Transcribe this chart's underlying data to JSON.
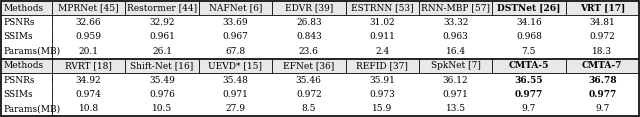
{
  "header1": [
    "Methods",
    "MPRNet [45]",
    "Restormer [44]",
    "NAFNet [6]",
    "EDVR [39]",
    "ESTRNN [53]",
    "RNN-MBP [57]",
    "DSTNet [26]",
    "VRT [17]"
  ],
  "row1_1": [
    "PSNRs",
    "32.66",
    "32.92",
    "33.69",
    "26.83",
    "31.02",
    "33.32",
    "34.16",
    "34.81"
  ],
  "row1_2": [
    "SSIMs",
    "0.959",
    "0.961",
    "0.967",
    "0.843",
    "0.911",
    "0.963",
    "0.968",
    "0.972"
  ],
  "row1_3": [
    "Params(MB)",
    "20.1",
    "26.1",
    "67.8",
    "23.6",
    "2.4",
    "16.4",
    "7.5",
    "18.3"
  ],
  "header2": [
    "Methods",
    "RVRT [18]",
    "Shift-Net [16]",
    "UEVD* [15]",
    "EFNet [36]",
    "REFID [37]",
    "SpkNet [7]",
    "CMTA-5",
    "CMTA-7"
  ],
  "row2_1": [
    "PSNRs",
    "34.92",
    "35.49",
    "35.48",
    "35.46",
    "35.91",
    "36.12",
    "36.55",
    "36.78"
  ],
  "row2_2": [
    "SSIMs",
    "0.974",
    "0.976",
    "0.971",
    "0.972",
    "0.973",
    "0.971",
    "0.977",
    "0.977"
  ],
  "row2_3": [
    "Params(MB)",
    "10.8",
    "10.5",
    "27.9",
    "8.5",
    "15.9",
    "13.5",
    "9.7",
    "9.7"
  ],
  "bg_header": "#e8e8e8",
  "bg_white": "#ffffff",
  "text_color": "#000000",
  "font_size": 6.5
}
